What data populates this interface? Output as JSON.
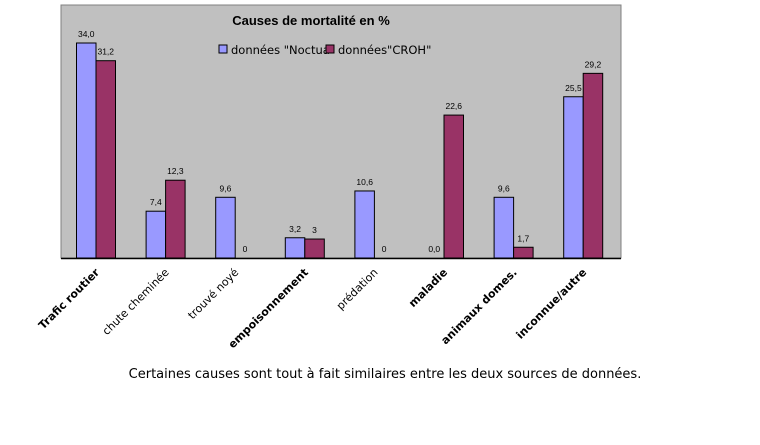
{
  "chart_data": {
    "type": "bar",
    "title": "Causes de mortalité en %",
    "categories": [
      "Trafic routier",
      "chute cheminée",
      "trouvé noyé",
      "empoisonnement",
      "prédation",
      "maladie",
      "animaux domes.",
      "inconnue/autre"
    ],
    "category_bold": [
      true,
      false,
      false,
      true,
      false,
      true,
      true,
      true
    ],
    "series": [
      {
        "name": "données \"Noctua\"",
        "color": "#9999ff",
        "values": [
          34.0,
          7.4,
          9.6,
          3.2,
          10.6,
          0.0,
          9.6,
          25.5
        ],
        "labels": [
          "34,0",
          "7,4",
          "9,6",
          "3,2",
          "10,6",
          "0,0",
          "9,6",
          "25,5"
        ]
      },
      {
        "name": "données\"CROH\"",
        "color": "#993366",
        "values": [
          31.2,
          12.3,
          0,
          3,
          0,
          22.6,
          1.7,
          29.2
        ],
        "labels": [
          "31,2",
          "12,3",
          "0",
          "3",
          "0",
          "22,6",
          "1,7",
          "29,2"
        ]
      }
    ],
    "ylim": [
      0,
      40
    ],
    "legend": "top-center",
    "plot_background": "#c0c0c0",
    "grid": false
  },
  "caption": "Certaines causes sont tout à fait similaires entre les deux sources de données."
}
